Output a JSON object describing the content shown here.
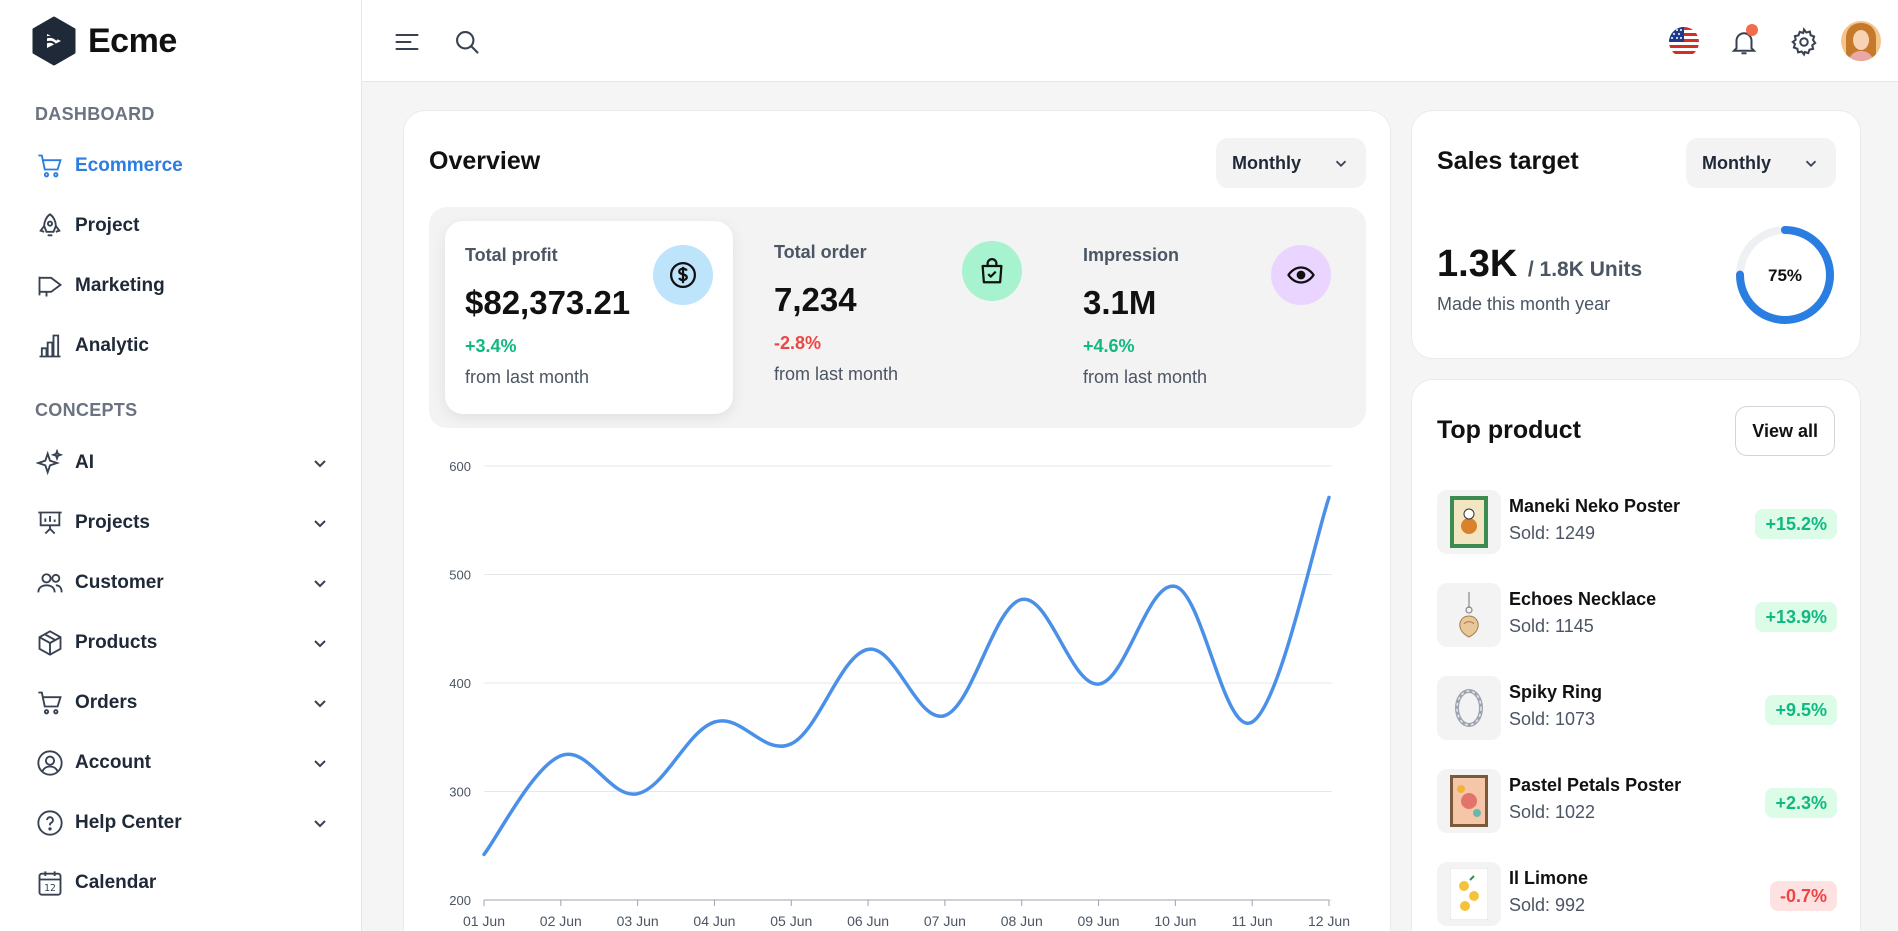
{
  "brand": {
    "name": "Ecme"
  },
  "sidebar": {
    "sections": [
      {
        "label": "DASHBOARD"
      },
      {
        "label": "CONCEPTS"
      }
    ],
    "dashboard_items": [
      {
        "label": "Ecommerce",
        "icon": "cart-icon",
        "active": true
      },
      {
        "label": "Project",
        "icon": "rocket-icon"
      },
      {
        "label": "Marketing",
        "icon": "megaphone-icon"
      },
      {
        "label": "Analytic",
        "icon": "bar-chart-icon"
      }
    ],
    "concept_items": [
      {
        "label": "AI",
        "icon": "sparkle-icon"
      },
      {
        "label": "Projects",
        "icon": "presentation-icon"
      },
      {
        "label": "Customer",
        "icon": "users-icon"
      },
      {
        "label": "Products",
        "icon": "box-icon"
      },
      {
        "label": "Orders",
        "icon": "cart-icon"
      },
      {
        "label": "Account",
        "icon": "user-circle-icon"
      },
      {
        "label": "Help Center",
        "icon": "help-icon"
      },
      {
        "label": "Calendar",
        "icon": "calendar-icon",
        "calendar_day": "12"
      }
    ]
  },
  "header": {
    "icons": [
      "menu-icon",
      "search-icon",
      "us-flag-icon",
      "bell-icon",
      "gear-icon",
      "avatar"
    ]
  },
  "overview": {
    "title": "Overview",
    "period": "Monthly",
    "stats": [
      {
        "label": "Total profit",
        "value": "$82,373.21",
        "change": "+3.4%",
        "sub": "from last month",
        "icon": "dollar-icon",
        "icon_bg": "#bde4fb"
      },
      {
        "label": "Total order",
        "value": "7,234",
        "change": "-2.8%",
        "sub": "from last month",
        "icon": "shopping-bag-icon",
        "icon_bg": "#a7f3d0"
      },
      {
        "label": "Impression",
        "value": "3.1M",
        "change": "+4.6%",
        "sub": "from last month",
        "icon": "eye-icon",
        "icon_bg": "#e9d5ff"
      }
    ]
  },
  "chart_data": {
    "type": "line",
    "categories": [
      "01 Jun",
      "02 Jun",
      "03 Jun",
      "04 Jun",
      "05 Jun",
      "06 Jun",
      "07 Jun",
      "08 Jun",
      "09 Jun",
      "10 Jun",
      "11 Jun",
      "12 Jun"
    ],
    "series": [
      {
        "values": [
          242,
          333,
          298,
          364,
          344,
          431,
          370,
          477,
          399,
          489,
          364,
          571
        ],
        "color": "#4a90e8"
      }
    ],
    "yticks": [
      200,
      300,
      400,
      500,
      600
    ],
    "ylim": [
      200,
      600
    ],
    "grid": true
  },
  "sales_target": {
    "title": "Sales target",
    "period": "Monthly",
    "value": "1.3K",
    "target": "/ 1.8K Units",
    "caption": "Made this month year",
    "percent_label": "75%",
    "percent": 0.75,
    "ring_color": "#2a7de1"
  },
  "top_product": {
    "title": "Top product",
    "view_all": "View all",
    "items": [
      {
        "name": "Maneki Neko Poster",
        "sold": "Sold: 1249",
        "change": "+15.2%",
        "trend": "up"
      },
      {
        "name": "Echoes Necklace",
        "sold": "Sold: 1145",
        "change": "+13.9%",
        "trend": "up"
      },
      {
        "name": "Spiky Ring",
        "sold": "Sold: 1073",
        "change": "+9.5%",
        "trend": "up"
      },
      {
        "name": "Pastel Petals Poster",
        "sold": "Sold: 1022",
        "change": "+2.3%",
        "trend": "up"
      },
      {
        "name": "Il Limone",
        "sold": "Sold: 992",
        "change": "-0.7%",
        "trend": "down"
      }
    ]
  }
}
